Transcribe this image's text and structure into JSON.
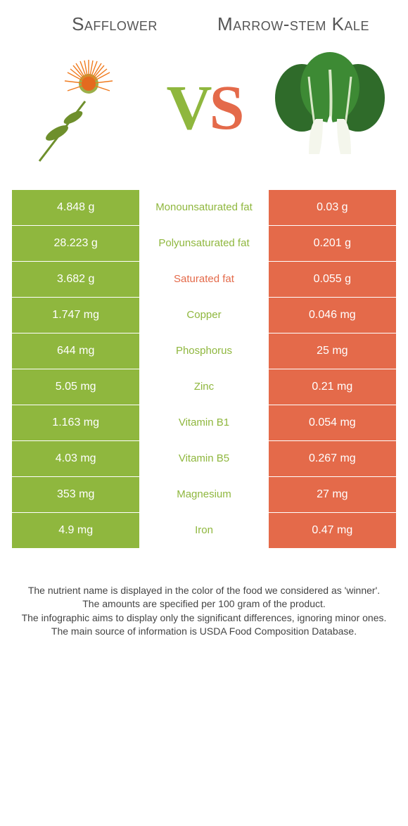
{
  "theme": {
    "left_color": "#8fb73e",
    "right_color": "#e46a4a",
    "background": "#ffffff",
    "text_color": "#555555",
    "title_fontsize": 26,
    "vs_fontsize": 90,
    "cell_fontsize": 16,
    "footer_fontsize": 14
  },
  "header": {
    "left_title": "Safflower",
    "right_title": "Marrow-stem Kale",
    "vs_left": "V",
    "vs_right": "S",
    "left_image": "safflower",
    "right_image": "marrow-stem-kale"
  },
  "table": {
    "rows": [
      {
        "left": "4.848 g",
        "label": "Monounsaturated fat",
        "right": "0.03 g",
        "winner": "left"
      },
      {
        "left": "28.223 g",
        "label": "Polyunsaturated fat",
        "right": "0.201 g",
        "winner": "left"
      },
      {
        "left": "3.682 g",
        "label": "Saturated fat",
        "right": "0.055 g",
        "winner": "right"
      },
      {
        "left": "1.747 mg",
        "label": "Copper",
        "right": "0.046 mg",
        "winner": "left"
      },
      {
        "left": "644 mg",
        "label": "Phosphorus",
        "right": "25 mg",
        "winner": "left"
      },
      {
        "left": "5.05 mg",
        "label": "Zinc",
        "right": "0.21 mg",
        "winner": "left"
      },
      {
        "left": "1.163 mg",
        "label": "Vitamin B1",
        "right": "0.054 mg",
        "winner": "left"
      },
      {
        "left": "4.03 mg",
        "label": "Vitamin B5",
        "right": "0.267 mg",
        "winner": "left"
      },
      {
        "left": "353 mg",
        "label": "Magnesium",
        "right": "27 mg",
        "winner": "left"
      },
      {
        "left": "4.9 mg",
        "label": "Iron",
        "right": "0.47 mg",
        "winner": "left"
      }
    ]
  },
  "footer": {
    "line1": "The nutrient name is displayed in the color of the food we considered as 'winner'.",
    "line2": "The amounts are specified per 100 gram of the product.",
    "line3": "The infographic aims to display only the significant differences, ignoring minor ones.",
    "line4": "The main source of information is USDA Food Composition Database."
  }
}
